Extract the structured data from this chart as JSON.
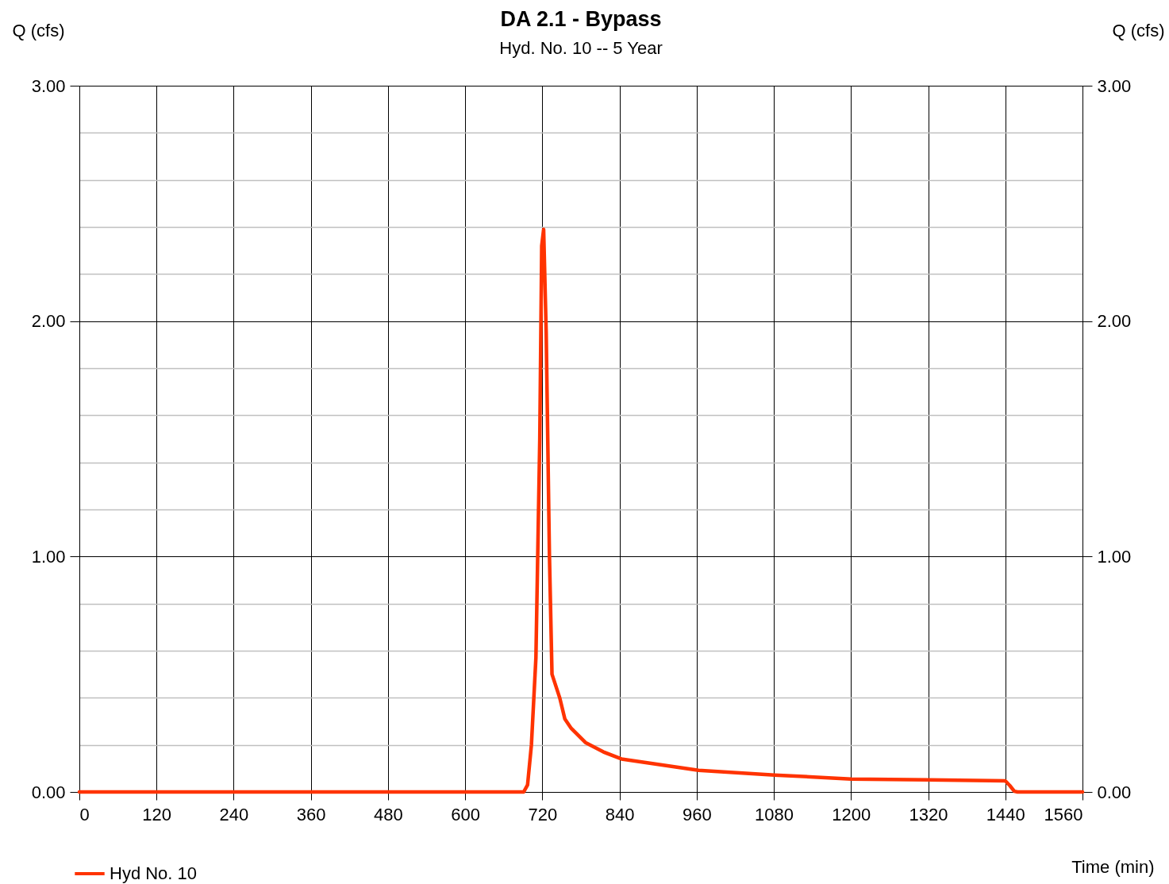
{
  "chart_data": {
    "type": "line",
    "title": "DA 2.1 - Bypass",
    "subtitle": "Hyd. No. 10 -- 5 Year",
    "xlabel": "Time (min)",
    "ylabel": "Q (cfs)",
    "y2label": "Q (cfs)",
    "x": [
      0,
      691,
      697,
      703,
      710,
      716,
      719,
      722,
      726,
      731,
      735,
      747,
      755,
      765,
      787,
      815,
      843,
      963,
      1081,
      1200,
      1320,
      1440,
      1447,
      1454,
      1459,
      1560
    ],
    "series": [
      {
        "name": "Hyd No. 10",
        "color": "#ff3300",
        "axis": "y",
        "values": [
          0,
          0,
          0.03,
          0.2,
          0.57,
          1.5,
          2.32,
          2.39,
          1.95,
          1.01,
          0.5,
          0.4,
          0.31,
          0.27,
          0.21,
          0.17,
          0.14,
          0.092,
          0.072,
          0.055,
          0.051,
          0.047,
          0.027,
          0.003,
          0,
          0
        ]
      }
    ],
    "xlim": [
      0,
      1560
    ],
    "xticks": [
      0,
      120,
      240,
      360,
      480,
      600,
      720,
      840,
      960,
      1080,
      1200,
      1320,
      1440,
      1560
    ],
    "ylim": [
      0,
      3
    ],
    "yticks": [
      {
        "value": 0,
        "label": "0.00"
      },
      {
        "value": 0.2,
        "label": null
      },
      {
        "value": 0.4,
        "label": null
      },
      {
        "value": 0.6,
        "label": null
      },
      {
        "value": 0.8,
        "label": null
      },
      {
        "value": 1,
        "label": "1.00"
      },
      {
        "value": 1.2,
        "label": null
      },
      {
        "value": 1.4,
        "label": null
      },
      {
        "value": 1.6,
        "label": null
      },
      {
        "value": 1.8,
        "label": null
      },
      {
        "value": 2,
        "label": "2.00"
      },
      {
        "value": 2.2,
        "label": null
      },
      {
        "value": 2.4,
        "label": null
      },
      {
        "value": 2.6,
        "label": null
      },
      {
        "value": 2.8,
        "label": null
      },
      {
        "value": 3,
        "label": "3.00"
      }
    ],
    "y2lim": [
      0,
      3
    ],
    "y2ticks": [
      {
        "value": 0,
        "label": "0.00"
      },
      {
        "value": 1,
        "label": "1.00"
      },
      {
        "value": 2,
        "label": "2.00"
      },
      {
        "value": 3,
        "label": "3.00"
      }
    ],
    "grid": true,
    "legend": "bottom left",
    "line_style": "solid",
    "marker": "none"
  }
}
